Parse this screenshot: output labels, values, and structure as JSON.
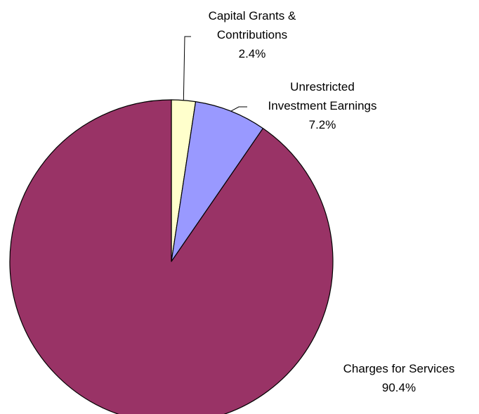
{
  "chart_data": {
    "type": "pie",
    "slices": [
      {
        "label_lines": [
          "Capital Grants &",
          "Contributions"
        ],
        "percent_label": "2.4%",
        "value": 2.4,
        "color": "#FFFFCC"
      },
      {
        "label_lines": [
          "Unrestricted",
          "Investment Earnings"
        ],
        "percent_label": "7.2%",
        "value": 7.2,
        "color": "#9999FF"
      },
      {
        "label_lines": [
          "Charges for Services"
        ],
        "percent_label": "90.4%",
        "value": 90.4,
        "color": "#993366"
      }
    ],
    "start_angle_deg": 0,
    "direction": "clockwise",
    "legend": "none"
  }
}
